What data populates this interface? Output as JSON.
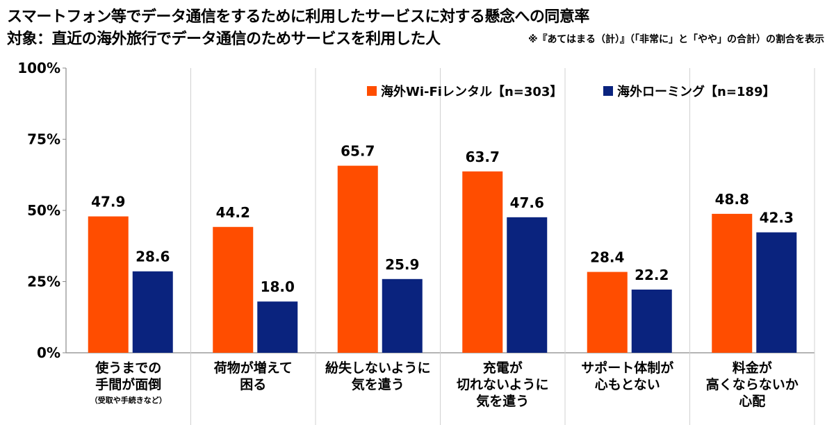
{
  "title": "スマートフォン等でデータ通信をするために利用したサービスに対する懸念への同意率",
  "subtitle": "対象：直近の海外旅行でデータ通信のためサービスを利用した人",
  "note": "※『あてはまる（計）』（「非常に」と「やや」の合計）の割合を表示",
  "chart_data": {
    "type": "bar",
    "categories": [
      {
        "lines": [
          "使うまでの",
          "手間が面倒"
        ],
        "note": "（受取や手続きなど）"
      },
      {
        "lines": [
          "荷物が増えて",
          "困る"
        ],
        "note": ""
      },
      {
        "lines": [
          "紛失しないように",
          "気を遣う"
        ],
        "note": ""
      },
      {
        "lines": [
          "充電が",
          "切れないように",
          "気を遣う"
        ],
        "note": ""
      },
      {
        "lines": [
          "サポート体制が",
          "心もとない"
        ],
        "note": ""
      },
      {
        "lines": [
          "料金が",
          "高くならないか",
          "心配"
        ],
        "note": ""
      }
    ],
    "series": [
      {
        "name": "海外Wi-Fiレンタル【n=303】",
        "color": "#FF4D00",
        "values": [
          47.9,
          44.2,
          65.7,
          63.7,
          28.4,
          48.8
        ]
      },
      {
        "name": "海外ローミング【n=189】",
        "color": "#0A237E",
        "values": [
          28.6,
          18.0,
          25.9,
          47.6,
          22.2,
          42.3
        ]
      }
    ],
    "yticks": [
      "0%",
      "25%",
      "50%",
      "75%",
      "100%"
    ],
    "ylim": [
      0,
      100
    ],
    "grid": "vertical separators",
    "legend": "top-right"
  }
}
